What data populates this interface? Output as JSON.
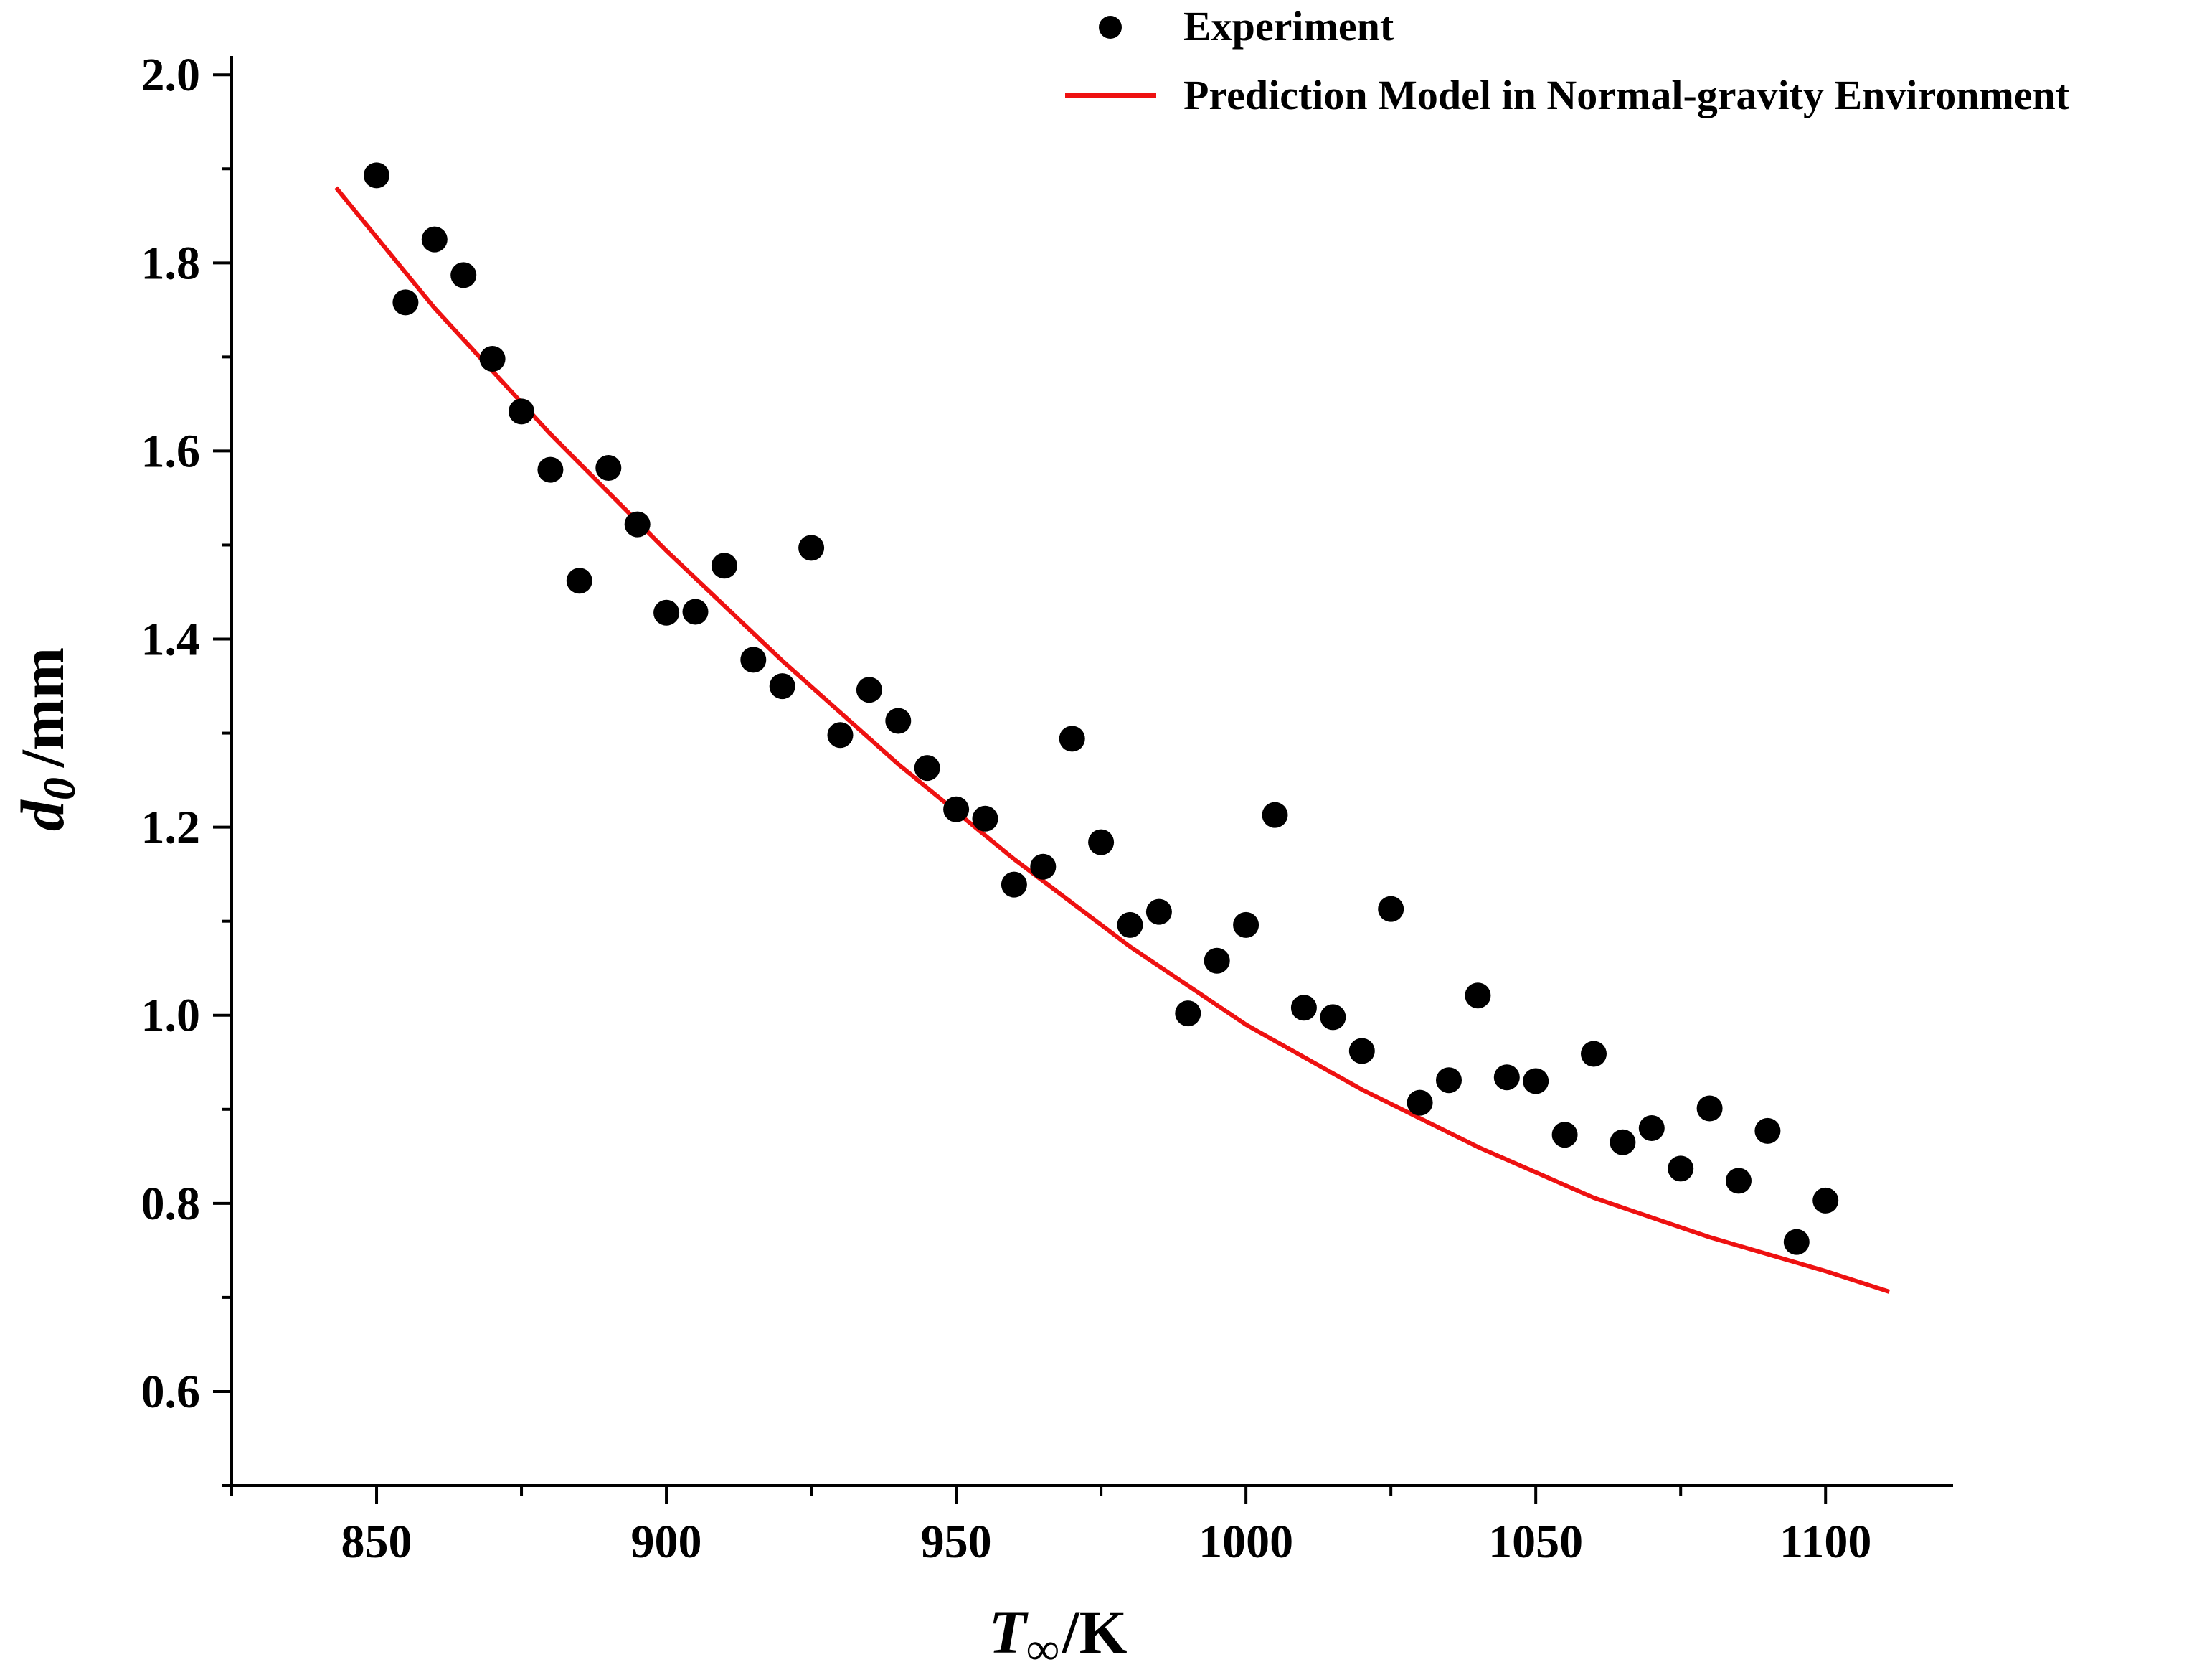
{
  "chart_data": {
    "type": "scatter",
    "x_label": {
      "main": "T",
      "sub": "∞",
      "unit": "/K"
    },
    "y_label": {
      "main": "d",
      "sub": "0",
      "unit": "/mm"
    },
    "xlim": [
      825,
      1122
    ],
    "ylim": [
      0.5,
      2.02
    ],
    "x_ticks": [
      850,
      900,
      950,
      1000,
      1050,
      1100
    ],
    "x_tick_labels": [
      "850",
      "900",
      "950",
      "1000",
      "1050",
      "1100"
    ],
    "y_ticks": [
      0.6,
      0.8,
      1.0,
      1.2,
      1.4,
      1.6,
      1.8,
      2.0
    ],
    "y_tick_labels": [
      "0.6",
      "0.8",
      "1.0",
      "1.2",
      "1.4",
      "1.6",
      "1.8",
      "2.0"
    ],
    "legend_position": "top-right",
    "series": [
      {
        "name": "Experiment",
        "kind": "scatter",
        "color": "#000000",
        "points": [
          [
            850,
            1.893
          ],
          [
            855,
            1.758
          ],
          [
            860,
            1.825
          ],
          [
            865,
            1.787
          ],
          [
            870,
            1.698
          ],
          [
            875,
            1.642
          ],
          [
            880,
            1.58
          ],
          [
            885,
            1.462
          ],
          [
            890,
            1.582
          ],
          [
            895,
            1.522
          ],
          [
            900,
            1.428
          ],
          [
            905,
            1.429
          ],
          [
            910,
            1.478
          ],
          [
            915,
            1.378
          ],
          [
            920,
            1.35
          ],
          [
            925,
            1.497
          ],
          [
            930,
            1.298
          ],
          [
            935,
            1.346
          ],
          [
            940,
            1.313
          ],
          [
            945,
            1.263
          ],
          [
            950,
            1.219
          ],
          [
            955,
            1.209
          ],
          [
            960,
            1.139
          ],
          [
            965,
            1.158
          ],
          [
            970,
            1.294
          ],
          [
            975,
            1.184
          ],
          [
            980,
            1.096
          ],
          [
            985,
            1.11
          ],
          [
            990,
            1.002
          ],
          [
            995,
            1.058
          ],
          [
            1000,
            1.096
          ],
          [
            1005,
            1.213
          ],
          [
            1010,
            1.008
          ],
          [
            1015,
            0.998
          ],
          [
            1020,
            0.962
          ],
          [
            1025,
            1.113
          ],
          [
            1030,
            0.907
          ],
          [
            1035,
            0.931
          ],
          [
            1040,
            1.021
          ],
          [
            1045,
            0.934
          ],
          [
            1050,
            0.93
          ],
          [
            1055,
            0.873
          ],
          [
            1060,
            0.959
          ],
          [
            1065,
            0.865
          ],
          [
            1070,
            0.88
          ],
          [
            1075,
            0.837
          ],
          [
            1080,
            0.901
          ],
          [
            1085,
            0.824
          ],
          [
            1090,
            0.877
          ],
          [
            1095,
            0.759
          ],
          [
            1100,
            0.803
          ]
        ]
      },
      {
        "name": "Prediction Model in Normal-gravity Environment",
        "kind": "line",
        "color": "#ee1111",
        "points": [
          [
            843,
            1.88
          ],
          [
            860,
            1.752
          ],
          [
            880,
            1.618
          ],
          [
            900,
            1.494
          ],
          [
            920,
            1.377
          ],
          [
            940,
            1.267
          ],
          [
            960,
            1.166
          ],
          [
            980,
            1.073
          ],
          [
            1000,
            0.99
          ],
          [
            1020,
            0.921
          ],
          [
            1040,
            0.86
          ],
          [
            1060,
            0.806
          ],
          [
            1080,
            0.764
          ],
          [
            1100,
            0.728
          ],
          [
            1111,
            0.706
          ]
        ]
      }
    ]
  }
}
